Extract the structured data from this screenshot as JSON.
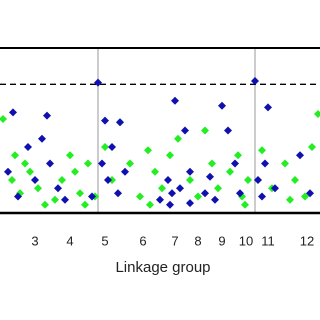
{
  "chart_data": {
    "type": "scatter",
    "x_label": "Linkage group",
    "xlim": [
      0,
      320
    ],
    "ylim": [
      0,
      100
    ],
    "xticks": [
      {
        "value": 35,
        "label": "3"
      },
      {
        "value": 70,
        "label": "4"
      },
      {
        "value": 105,
        "label": "5"
      },
      {
        "value": 143,
        "label": "6"
      },
      {
        "value": 175,
        "label": "7"
      },
      {
        "value": 198,
        "label": "8"
      },
      {
        "value": 222,
        "label": "9"
      },
      {
        "value": 246,
        "label": "10"
      },
      {
        "value": 268,
        "label": "11"
      },
      {
        "value": 307,
        "label": "12"
      }
    ],
    "threshold": 78,
    "group_boundaries": [
      98,
      255
    ],
    "series": [
      {
        "color": "#22ee22",
        "x": [
          3,
          15,
          25,
          12,
          20,
          30,
          38,
          55,
          62,
          70,
          75,
          80,
          88,
          95,
          105,
          112,
          120,
          130,
          140,
          148,
          155,
          162,
          170,
          178,
          190,
          198,
          205,
          212,
          218,
          230,
          238,
          242,
          248,
          262,
          272,
          285,
          295,
          305,
          312,
          318,
          45,
          85,
          150,
          245,
          290
        ],
        "values": [
          57,
          35,
          30,
          20,
          12,
          25,
          15,
          8,
          20,
          35,
          25,
          12,
          30,
          10,
          40,
          20,
          55,
          30,
          10,
          38,
          25,
          15,
          35,
          45,
          20,
          10,
          50,
          30,
          15,
          25,
          35,
          10,
          20,
          38,
          15,
          30,
          20,
          10,
          40,
          60,
          5,
          5,
          5,
          5,
          8
        ]
      },
      {
        "color": "#1010b0",
        "x": [
          13,
          8,
          18,
          28,
          35,
          42,
          47,
          50,
          58,
          65,
          92,
          98,
          102,
          105,
          108,
          112,
          118,
          120,
          125,
          160,
          168,
          172,
          175,
          180,
          185,
          190,
          205,
          210,
          215,
          222,
          228,
          235,
          240,
          255,
          258,
          262,
          268,
          265,
          275,
          300,
          310,
          190,
          170
        ],
        "values": [
          61,
          25,
          10,
          40,
          20,
          45,
          59,
          30,
          15,
          8,
          10,
          79,
          30,
          56,
          20,
          40,
          12,
          55,
          25,
          8,
          20,
          12,
          68,
          15,
          50,
          25,
          12,
          22,
          8,
          65,
          50,
          30,
          12,
          80,
          20,
          10,
          64,
          30,
          15,
          35,
          12,
          6,
          5
        ]
      }
    ]
  }
}
